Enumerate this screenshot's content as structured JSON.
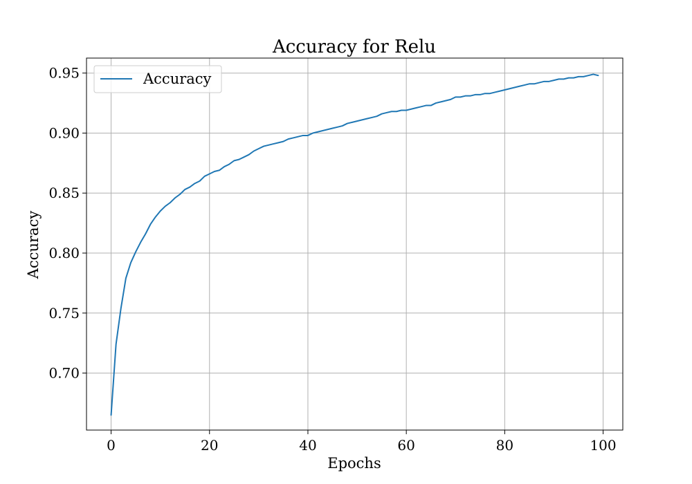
{
  "chart_data": {
    "type": "line",
    "title": "Accuracy for Relu",
    "xlabel": "Epochs",
    "ylabel": "Accuracy",
    "xlim": [
      -5,
      104
    ],
    "ylim": [
      0.6525,
      0.9625
    ],
    "xticks": [
      0,
      20,
      40,
      60,
      80,
      100
    ],
    "yticks": [
      0.7,
      0.75,
      0.8,
      0.85,
      0.9,
      0.95
    ],
    "xtick_labels": [
      "0",
      "20",
      "40",
      "60",
      "80",
      "100"
    ],
    "ytick_labels": [
      "0.70",
      "0.75",
      "0.80",
      "0.85",
      "0.90",
      "0.95"
    ],
    "grid": true,
    "legend_position": "upper-left",
    "series": [
      {
        "name": "Accuracy",
        "color": "#1f77b4",
        "x": [
          0,
          1,
          2,
          3,
          4,
          5,
          6,
          7,
          8,
          9,
          10,
          11,
          12,
          13,
          14,
          15,
          16,
          17,
          18,
          19,
          20,
          21,
          22,
          23,
          24,
          25,
          26,
          27,
          28,
          29,
          30,
          31,
          32,
          33,
          34,
          35,
          36,
          37,
          38,
          39,
          40,
          41,
          42,
          43,
          44,
          45,
          46,
          47,
          48,
          49,
          50,
          51,
          52,
          53,
          54,
          55,
          56,
          57,
          58,
          59,
          60,
          61,
          62,
          63,
          64,
          65,
          66,
          67,
          68,
          69,
          70,
          71,
          72,
          73,
          74,
          75,
          76,
          77,
          78,
          79,
          80,
          81,
          82,
          83,
          84,
          85,
          86,
          87,
          88,
          89,
          90,
          91,
          92,
          93,
          94,
          95,
          96,
          97,
          98,
          99
        ],
        "values": [
          0.665,
          0.724,
          0.754,
          0.779,
          0.792,
          0.801,
          0.809,
          0.816,
          0.824,
          0.83,
          0.835,
          0.839,
          0.842,
          0.846,
          0.849,
          0.853,
          0.855,
          0.858,
          0.86,
          0.864,
          0.866,
          0.868,
          0.869,
          0.872,
          0.874,
          0.877,
          0.878,
          0.88,
          0.882,
          0.885,
          0.887,
          0.889,
          0.89,
          0.891,
          0.892,
          0.893,
          0.895,
          0.896,
          0.897,
          0.898,
          0.898,
          0.9,
          0.901,
          0.902,
          0.903,
          0.904,
          0.905,
          0.906,
          0.908,
          0.909,
          0.91,
          0.911,
          0.912,
          0.913,
          0.914,
          0.916,
          0.917,
          0.918,
          0.918,
          0.919,
          0.919,
          0.92,
          0.921,
          0.922,
          0.923,
          0.923,
          0.925,
          0.926,
          0.927,
          0.928,
          0.93,
          0.93,
          0.931,
          0.931,
          0.932,
          0.932,
          0.933,
          0.933,
          0.934,
          0.935,
          0.936,
          0.937,
          0.938,
          0.939,
          0.94,
          0.941,
          0.941,
          0.942,
          0.943,
          0.943,
          0.944,
          0.945,
          0.945,
          0.946,
          0.946,
          0.947,
          0.947,
          0.948,
          0.949,
          0.948
        ]
      }
    ]
  }
}
